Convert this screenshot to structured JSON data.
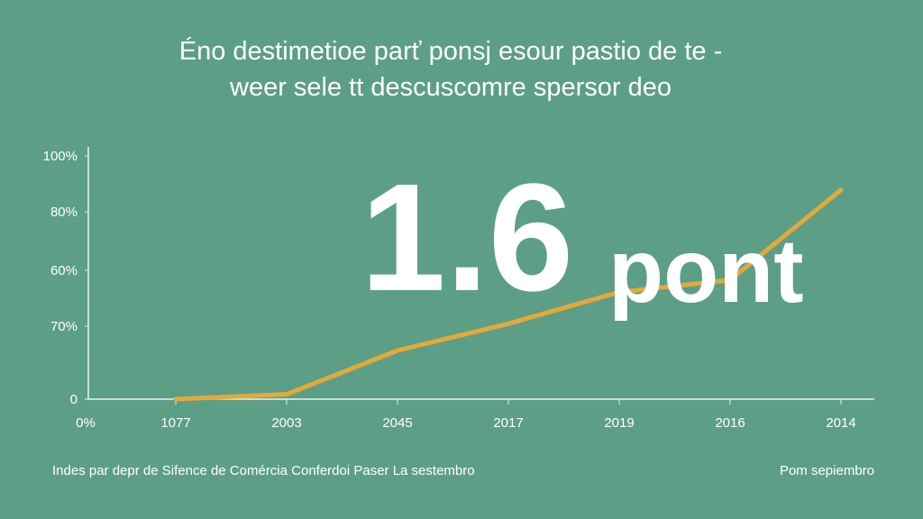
{
  "chart_data": {
    "type": "line",
    "title": [
      "Éno destimetioe parť ponsj esour pastio de te -",
      "weer sele tt descuscomre spersor deo"
    ],
    "corner_label": "0%",
    "categories": [
      "1077",
      "2003",
      "2045",
      "2017",
      "2019",
      "2016",
      "2014"
    ],
    "series": [
      {
        "color": "#e3a93a",
        "values": [
          0,
          2,
          20,
          31,
          44,
          49,
          86
        ]
      }
    ],
    "ylim": [
      0,
      100
    ],
    "yticks": [
      {
        "value": 100,
        "label": "100%"
      },
      {
        "value": 77,
        "label": "80%"
      },
      {
        "value": 53,
        "label": "60%"
      },
      {
        "value": 30,
        "label": "70%"
      },
      0
    ],
    "annotations": [
      "1.6",
      "pont"
    ],
    "footer": {
      "left": "Indes par depr de Sifence de Comércia Conferdoi Paser La sestembro",
      "right": "Pom sepiembro"
    }
  }
}
